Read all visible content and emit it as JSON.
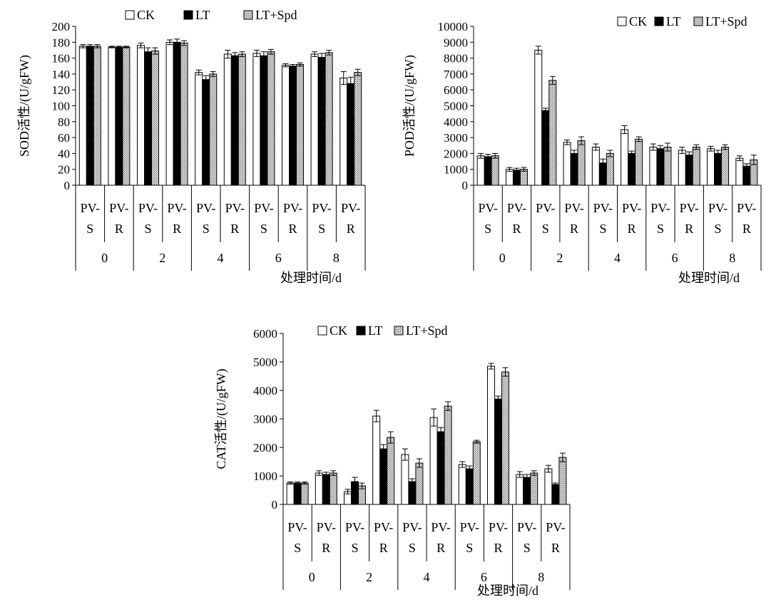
{
  "figure": {
    "legend_labels": [
      "CK",
      "LT",
      "LT+Spd"
    ]
  },
  "colors": {
    "CK": "#ffffff",
    "LT": "#000000",
    "LT+Spd": "hatched-gray",
    "axis": "#000000"
  },
  "chart_data": [
    {
      "type": "bar",
      "title": "",
      "ylabel": "SOD活性/(U/gFW)",
      "xlabel": "处理时间/d",
      "ylim": [
        0,
        200
      ],
      "yticks": [
        0,
        20,
        40,
        60,
        80,
        100,
        120,
        140,
        160,
        180,
        200
      ],
      "groups": [
        "0",
        "2",
        "4",
        "6",
        "8"
      ],
      "categories": [
        "PV-S",
        "PV-R",
        "PV-S",
        "PV-R",
        "PV-S",
        "PV-R",
        "PV-S",
        "PV-R",
        "PV-S",
        "PV-R"
      ],
      "category_lines": [
        [
          "PV-",
          "S"
        ],
        [
          "PV-",
          "R"
        ]
      ],
      "legend_position": "top-left",
      "series": [
        {
          "name": "CK",
          "values": [
            175,
            174,
            176,
            180,
            142,
            165,
            166,
            151,
            165,
            135
          ],
          "errors": [
            2,
            1,
            3,
            3,
            3,
            5,
            4,
            2,
            3,
            8
          ]
        },
        {
          "name": "LT",
          "values": [
            175,
            174,
            168,
            180,
            133,
            163,
            163,
            150,
            161,
            128
          ],
          "errors": [
            2,
            1,
            5,
            4,
            5,
            4,
            5,
            2,
            5,
            8
          ]
        },
        {
          "name": "LT+Spd",
          "values": [
            175,
            174,
            169,
            179,
            140,
            165,
            168,
            152,
            167,
            142
          ],
          "errors": [
            2,
            1,
            4,
            3,
            3,
            3,
            3,
            2,
            3,
            4
          ]
        }
      ]
    },
    {
      "type": "bar",
      "title": "",
      "ylabel": "POD活性/(U/gFW)",
      "xlabel": "处理时间/d",
      "ylim": [
        0,
        10000
      ],
      "yticks": [
        0,
        1000,
        2000,
        3000,
        4000,
        5000,
        6000,
        7000,
        8000,
        9000,
        10000
      ],
      "groups": [
        "0",
        "2",
        "4",
        "6",
        "8"
      ],
      "categories": [
        "PV-S",
        "PV-R",
        "PV-S",
        "PV-R",
        "PV-S",
        "PV-R",
        "PV-S",
        "PV-R",
        "PV-S",
        "PV-R"
      ],
      "category_lines": [
        [
          "PV-",
          "S"
        ],
        [
          "PV-",
          "R"
        ]
      ],
      "legend_position": "top-right",
      "series": [
        {
          "name": "CK",
          "values": [
            1850,
            1000,
            8500,
            2700,
            2400,
            3500,
            2400,
            2200,
            2300,
            1700
          ],
          "errors": [
            150,
            120,
            250,
            150,
            200,
            250,
            200,
            200,
            150,
            150
          ]
        },
        {
          "name": "LT",
          "values": [
            1800,
            950,
            4700,
            2000,
            1400,
            2000,
            2300,
            1900,
            2000,
            1200
          ],
          "errors": [
            150,
            120,
            150,
            200,
            250,
            150,
            200,
            200,
            200,
            150
          ]
        },
        {
          "name": "LT+Spd",
          "values": [
            1850,
            1000,
            6600,
            2800,
            2000,
            2900,
            2400,
            2400,
            2400,
            1600
          ],
          "errors": [
            150,
            120,
            250,
            250,
            200,
            150,
            250,
            150,
            150,
            300
          ]
        }
      ]
    },
    {
      "type": "bar",
      "title": "",
      "ylabel": "CAT活性/(U/gFW)",
      "xlabel": "处理时间/d",
      "ylim": [
        0,
        6000
      ],
      "yticks": [
        0,
        1000,
        2000,
        3000,
        4000,
        5000,
        6000
      ],
      "groups": [
        "0",
        "2",
        "4",
        "6",
        "8"
      ],
      "categories": [
        "PV-S",
        "PV-R",
        "PV-S",
        "PV-R",
        "PV-S",
        "PV-R",
        "PV-S",
        "PV-R",
        "PV-S",
        "PV-R"
      ],
      "category_lines": [
        [
          "PV-",
          "S"
        ],
        [
          "PV-",
          "R"
        ]
      ],
      "legend_position": "top-left",
      "series": [
        {
          "name": "CK",
          "values": [
            750,
            1100,
            450,
            3100,
            1750,
            3050,
            1400,
            4850,
            1050,
            1250
          ],
          "errors": [
            40,
            80,
            80,
            200,
            200,
            300,
            100,
            100,
            100,
            120
          ]
        },
        {
          "name": "LT",
          "values": [
            750,
            1050,
            800,
            1950,
            800,
            2550,
            1250,
            3700,
            950,
            700
          ],
          "errors": [
            40,
            80,
            150,
            150,
            100,
            150,
            100,
            100,
            100,
            50
          ]
        },
        {
          "name": "LT+Spd",
          "values": [
            750,
            1100,
            650,
            2350,
            1450,
            3450,
            2200,
            4650,
            1100,
            1650
          ],
          "errors": [
            40,
            80,
            100,
            200,
            150,
            150,
            50,
            150,
            80,
            150
          ]
        }
      ]
    }
  ]
}
